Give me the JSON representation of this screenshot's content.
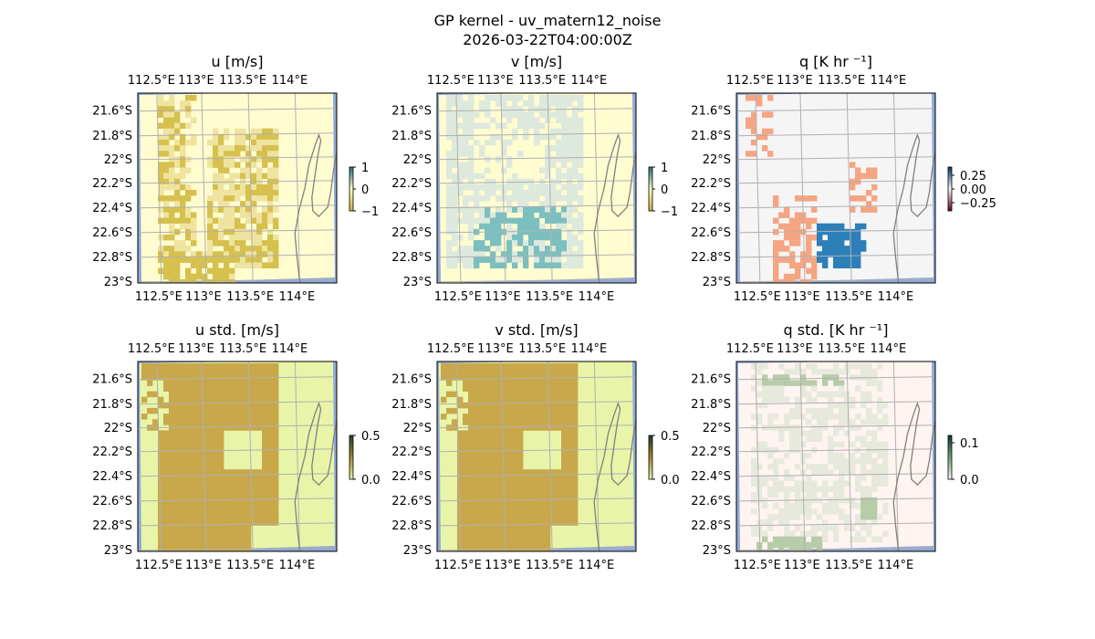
{
  "figure": {
    "title": "GP kernel - uv_matern12_noise",
    "subtitle": "2026-03-22T04:00:00Z"
  },
  "chart_data": [
    {
      "type": "heatmap",
      "title": "u [m/s]",
      "lon_ticks": [
        "112.5°E",
        "113°E",
        "113.5°E",
        "114°E"
      ],
      "lat_ticks": [
        "21.6°S",
        "21.8°S",
        "22°S",
        "22.2°S",
        "22.4°S",
        "22.6°S",
        "22.8°S",
        "23°S"
      ],
      "lon_range": [
        112.45,
        114.05
      ],
      "lat_range": [
        -23.0,
        -21.47
      ],
      "colorbar": {
        "ticks": [
          "1",
          "0",
          "−1"
        ],
        "range": [
          -1,
          1
        ],
        "colors": [
          "#1f6f77",
          "#ffffc0",
          "#c9b43a"
        ]
      },
      "field": "u",
      "colors": {
        "background": "#fffcd0",
        "cell": "#d6c04e",
        "cell_light": "#efe3a0"
      }
    },
    {
      "type": "heatmap",
      "title": "v [m/s]",
      "lon_ticks": [
        "112.5°E",
        "113°E",
        "113.5°E",
        "114°E"
      ],
      "lat_ticks": [
        "21.6°S",
        "21.8°S",
        "22°S",
        "22.2°S",
        "22.4°S",
        "22.6°S",
        "22.8°S",
        "23°S"
      ],
      "lon_range": [
        112.45,
        114.05
      ],
      "lat_range": [
        -23.0,
        -21.47
      ],
      "colorbar": {
        "ticks": [
          "1",
          "0",
          "−1"
        ],
        "range": [
          -1,
          1
        ],
        "colors": [
          "#1f6f77",
          "#ffffc0",
          "#c9b43a"
        ]
      },
      "field": "v",
      "colors": {
        "background": "#fffcd0",
        "cell": "#7bbfbf",
        "cell_light": "#dde9dc"
      }
    },
    {
      "type": "heatmap",
      "title": "q [K hr ⁻¹]",
      "lon_ticks": [
        "112.5°E",
        "113°E",
        "113.5°E",
        "114°E"
      ],
      "lat_ticks": [
        "21.6°S",
        "21.8°S",
        "22°S",
        "22.2°S",
        "22.4°S",
        "22.6°S",
        "22.8°S",
        "23°S"
      ],
      "lon_range": [
        112.45,
        114.05
      ],
      "lat_range": [
        -23.0,
        -21.47
      ],
      "colorbar": {
        "ticks": [
          "0.25",
          "0.00",
          "−0.25"
        ],
        "range": [
          -0.4,
          0.4
        ],
        "colors": [
          "#08306b",
          "#f7f7f7",
          "#67001f"
        ]
      },
      "field": "q",
      "colors": {
        "background": "#f5f5f5",
        "cell": "#f6a582",
        "cell_cold": "#2c7fb8"
      }
    },
    {
      "type": "heatmap",
      "title": "u std. [m/s]",
      "lon_ticks": [
        "112.5°E",
        "113°E",
        "113.5°E",
        "114°E"
      ],
      "lat_ticks": [
        "21.6°S",
        "21.8°S",
        "22°S",
        "22.2°S",
        "22.4°S",
        "22.6°S",
        "22.8°S",
        "23°S"
      ],
      "lon_range": [
        112.45,
        114.05
      ],
      "lat_range": [
        -23.0,
        -21.47
      ],
      "colorbar": {
        "ticks": [
          "0.5",
          "0.0"
        ],
        "range": [
          0,
          0.5
        ],
        "colors": [
          "#1c3e2e",
          "#a38a2c",
          "#e7f5a8"
        ]
      },
      "field": "std",
      "colors": {
        "background": "#e8f5a8",
        "cell": "#c8a84b"
      }
    },
    {
      "type": "heatmap",
      "title": "v std. [m/s]",
      "lon_ticks": [
        "112.5°E",
        "113°E",
        "113.5°E",
        "114°E"
      ],
      "lat_ticks": [
        "21.6°S",
        "21.8°S",
        "22°S",
        "22.2°S",
        "22.4°S",
        "22.6°S",
        "22.8°S",
        "23°S"
      ],
      "lon_range": [
        112.45,
        114.05
      ],
      "lat_range": [
        -23.0,
        -21.47
      ],
      "colorbar": {
        "ticks": [
          "0.5",
          "0.0"
        ],
        "range": [
          0,
          0.5
        ],
        "colors": [
          "#1c3e2e",
          "#a38a2c",
          "#e7f5a8"
        ]
      },
      "field": "std",
      "colors": {
        "background": "#e8f5a8",
        "cell": "#c8a84b"
      }
    },
    {
      "type": "heatmap",
      "title": "q std. [K hr ⁻¹]",
      "lon_ticks": [
        "112.5°E",
        "113°E",
        "113.5°E",
        "114°E"
      ],
      "lat_ticks": [
        "21.6°S",
        "21.8°S",
        "22°S",
        "22.2°S",
        "22.4°S",
        "22.6°S",
        "22.8°S",
        "23°S"
      ],
      "lon_range": [
        112.45,
        114.05
      ],
      "lat_range": [
        -23.0,
        -21.47
      ],
      "colorbar": {
        "ticks": [
          "0.1",
          "0.0"
        ],
        "range": [
          0,
          0.12
        ],
        "colors": [
          "#0d3b2e",
          "#6ea87a",
          "#fff3ef"
        ]
      },
      "field": "qstd",
      "colors": {
        "background": "#fff4f0",
        "cell": "#e7e9dd",
        "cell_dark": "#b8ccaa"
      }
    }
  ],
  "map_colors": {
    "grid": "#b0b0b0",
    "coast": "#808080",
    "ocean": "#8fa9d8"
  }
}
